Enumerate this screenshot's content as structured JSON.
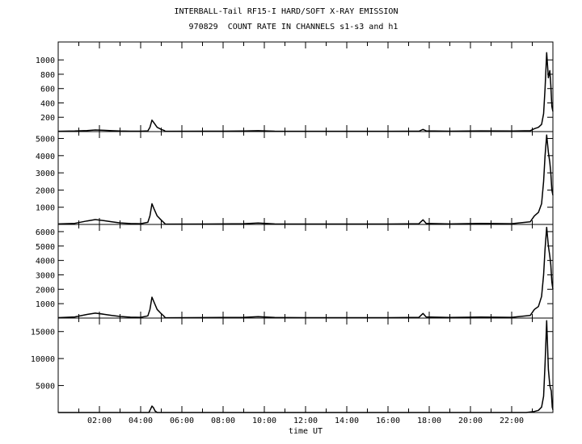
{
  "title": "INTERBALL-Tail RF15-I HARD/SOFT X-RAY EMISSION",
  "subtitle": "970829  COUNT RATE IN CHANNELS s1-s3 and h1",
  "chart_data": {
    "type": "line",
    "xlabel": "time UT",
    "xlim": [
      0,
      24
    ],
    "x_tick_labels": [
      "02:00",
      "04:00",
      "06:00",
      "08:00",
      "10:00",
      "12:00",
      "14:00",
      "16:00",
      "18:00",
      "20:00",
      "22:00"
    ],
    "x_tick_values": [
      2,
      4,
      6,
      8,
      10,
      12,
      14,
      16,
      18,
      20,
      22
    ],
    "grid": false,
    "panels": [
      {
        "ylim": [
          0,
          1250
        ],
        "y_ticks": [
          200,
          400,
          600,
          800,
          1000
        ],
        "y_tick_labels": [
          "200",
          "400",
          "600",
          "800",
          "1000"
        ],
        "points": [
          [
            0,
            5
          ],
          [
            0.8,
            8
          ],
          [
            1.4,
            15
          ],
          [
            1.8,
            22
          ],
          [
            2.2,
            18
          ],
          [
            2.6,
            12
          ],
          [
            3.0,
            8
          ],
          [
            3.5,
            6
          ],
          [
            4.0,
            6
          ],
          [
            4.35,
            10
          ],
          [
            4.45,
            60
          ],
          [
            4.55,
            160
          ],
          [
            4.65,
            120
          ],
          [
            4.8,
            60
          ],
          [
            5.0,
            30
          ],
          [
            5.15,
            15
          ],
          [
            5.2,
            5
          ],
          [
            7.9,
            6
          ],
          [
            9.0,
            8
          ],
          [
            9.7,
            12
          ],
          [
            10.5,
            6
          ],
          [
            12.0,
            5
          ],
          [
            14.0,
            5
          ],
          [
            16.0,
            5
          ],
          [
            17.5,
            6
          ],
          [
            17.7,
            30
          ],
          [
            17.85,
            10
          ],
          [
            19.0,
            6
          ],
          [
            20.5,
            10
          ],
          [
            22.0,
            8
          ],
          [
            22.9,
            12
          ],
          [
            23.1,
            40
          ],
          [
            23.3,
            60
          ],
          [
            23.45,
            100
          ],
          [
            23.55,
            250
          ],
          [
            23.62,
            600
          ],
          [
            23.7,
            1100
          ],
          [
            23.78,
            750
          ],
          [
            23.85,
            850
          ],
          [
            23.9,
            650
          ],
          [
            23.95,
            350
          ],
          [
            24.0,
            280
          ]
        ]
      },
      {
        "ylim": [
          0,
          5400
        ],
        "y_ticks": [
          1000,
          2000,
          3000,
          4000,
          5000
        ],
        "y_tick_labels": [
          "1000",
          "2000",
          "3000",
          "4000",
          "5000"
        ],
        "points": [
          [
            0,
            30
          ],
          [
            0.8,
            60
          ],
          [
            1.4,
            200
          ],
          [
            1.8,
            280
          ],
          [
            2.2,
            220
          ],
          [
            2.6,
            150
          ],
          [
            3.0,
            90
          ],
          [
            3.5,
            50
          ],
          [
            4.0,
            40
          ],
          [
            4.35,
            120
          ],
          [
            4.45,
            500
          ],
          [
            4.55,
            1200
          ],
          [
            4.65,
            900
          ],
          [
            4.8,
            500
          ],
          [
            5.0,
            250
          ],
          [
            5.15,
            80
          ],
          [
            5.2,
            20
          ],
          [
            7.9,
            30
          ],
          [
            9.0,
            40
          ],
          [
            9.7,
            80
          ],
          [
            10.5,
            30
          ],
          [
            12.0,
            25
          ],
          [
            14.0,
            25
          ],
          [
            16.0,
            25
          ],
          [
            17.5,
            40
          ],
          [
            17.7,
            270
          ],
          [
            17.85,
            60
          ],
          [
            19.0,
            30
          ],
          [
            20.5,
            60
          ],
          [
            22.0,
            40
          ],
          [
            22.9,
            150
          ],
          [
            23.1,
            500
          ],
          [
            23.3,
            700
          ],
          [
            23.45,
            1200
          ],
          [
            23.55,
            2500
          ],
          [
            23.62,
            4000
          ],
          [
            23.7,
            5200
          ],
          [
            23.78,
            4200
          ],
          [
            23.85,
            3600
          ],
          [
            23.9,
            3000
          ],
          [
            23.95,
            2000
          ],
          [
            24.0,
            1700
          ]
        ]
      },
      {
        "ylim": [
          0,
          6500
        ],
        "y_ticks": [
          1000,
          2000,
          3000,
          4000,
          5000,
          6000
        ],
        "y_tick_labels": [
          "1000",
          "2000",
          "3000",
          "4000",
          "5000",
          "6000"
        ],
        "points": [
          [
            0,
            30
          ],
          [
            0.8,
            80
          ],
          [
            1.4,
            250
          ],
          [
            1.8,
            340
          ],
          [
            2.2,
            270
          ],
          [
            2.6,
            180
          ],
          [
            3.0,
            110
          ],
          [
            3.5,
            60
          ],
          [
            4.0,
            50
          ],
          [
            4.35,
            150
          ],
          [
            4.45,
            600
          ],
          [
            4.55,
            1450
          ],
          [
            4.65,
            1100
          ],
          [
            4.8,
            600
          ],
          [
            5.0,
            300
          ],
          [
            5.15,
            100
          ],
          [
            5.2,
            20
          ],
          [
            7.9,
            40
          ],
          [
            9.0,
            50
          ],
          [
            9.7,
            100
          ],
          [
            10.5,
            40
          ],
          [
            12.0,
            30
          ],
          [
            14.0,
            30
          ],
          [
            16.0,
            30
          ],
          [
            17.5,
            50
          ],
          [
            17.7,
            320
          ],
          [
            17.85,
            80
          ],
          [
            19.0,
            40
          ],
          [
            20.5,
            70
          ],
          [
            22.0,
            50
          ],
          [
            22.9,
            180
          ],
          [
            23.1,
            600
          ],
          [
            23.3,
            800
          ],
          [
            23.45,
            1500
          ],
          [
            23.55,
            3000
          ],
          [
            23.62,
            4800
          ],
          [
            23.7,
            6300
          ],
          [
            23.78,
            5000
          ],
          [
            23.85,
            4300
          ],
          [
            23.9,
            3700
          ],
          [
            23.95,
            2500
          ],
          [
            24.0,
            2000
          ]
        ]
      },
      {
        "ylim": [
          0,
          17500
        ],
        "y_ticks": [
          5000,
          10000,
          15000
        ],
        "y_tick_labels": [
          "5000",
          "10000",
          "15000"
        ],
        "points": [
          [
            0,
            0
          ],
          [
            4.4,
            0
          ],
          [
            4.5,
            800
          ],
          [
            4.55,
            1200
          ],
          [
            4.62,
            900
          ],
          [
            4.7,
            300
          ],
          [
            4.8,
            0
          ],
          [
            22.7,
            0
          ],
          [
            23.1,
            200
          ],
          [
            23.3,
            400
          ],
          [
            23.45,
            1000
          ],
          [
            23.55,
            3000
          ],
          [
            23.62,
            9000
          ],
          [
            23.7,
            17000
          ],
          [
            23.78,
            8000
          ],
          [
            23.85,
            5000
          ],
          [
            23.92,
            4000
          ],
          [
            23.97,
            1000
          ],
          [
            24.0,
            500
          ]
        ]
      }
    ]
  }
}
